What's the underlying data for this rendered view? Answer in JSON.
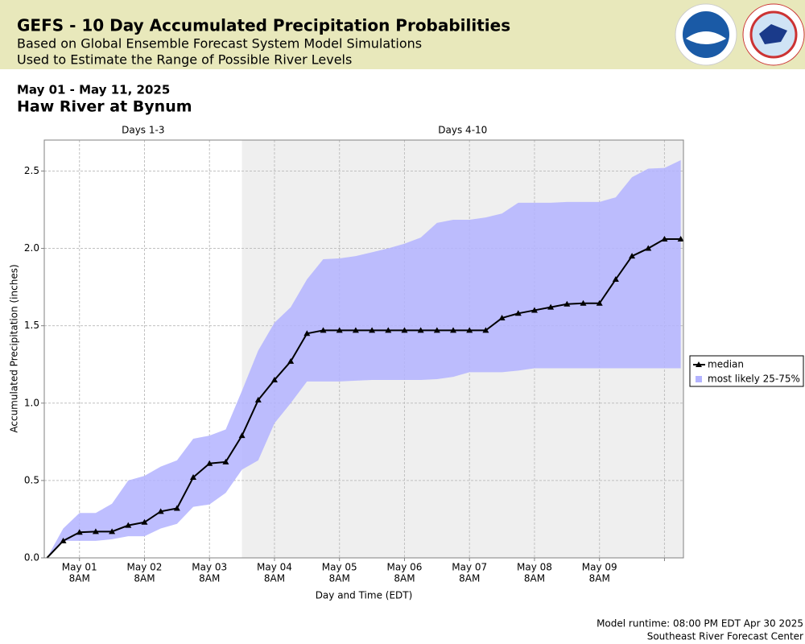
{
  "header": {
    "title": "GEFS - 10 Day Accumulated Precipitation Probabilities",
    "subtitle": "Based on Global Ensemble Forecast System Model Simulations",
    "subtitle2": "Used to Estimate the Range of Possible River Levels"
  },
  "chart_data": {
    "type": "line",
    "date_range": "May 01 - May 11, 2025",
    "title": "Haw River at Bynum",
    "x_label": "Day and Time (EDT)",
    "y_label": "Accumulated Precipitation (inches)",
    "regions": [
      {
        "label": "Days 1-3",
        "range": [
          -5,
          68
        ],
        "shaded": false
      },
      {
        "label": "Days 4-10",
        "range": [
          68,
          231
        ],
        "shaded": true
      }
    ],
    "x": [
      -4,
      2,
      8,
      14,
      20,
      26,
      32,
      38,
      44,
      50,
      56,
      62,
      68,
      74,
      80,
      86,
      92,
      98,
      104,
      110,
      116,
      122,
      128,
      134,
      140,
      146,
      152,
      158,
      164,
      170,
      176,
      182,
      188,
      194,
      200,
      206,
      212,
      218,
      224,
      230
    ],
    "xlim": [
      -5,
      231
    ],
    "xticks": [
      {
        "value": 8,
        "label": "May 01",
        "sublabel": "8AM"
      },
      {
        "value": 32,
        "label": "May 02",
        "sublabel": "8AM"
      },
      {
        "value": 56,
        "label": "May 03",
        "sublabel": "8AM"
      },
      {
        "value": 80,
        "label": "May 04",
        "sublabel": "8AM"
      },
      {
        "value": 104,
        "label": "May 05",
        "sublabel": "8AM"
      },
      {
        "value": 128,
        "label": "May 06",
        "sublabel": "8AM"
      },
      {
        "value": 152,
        "label": "May 07",
        "sublabel": "8AM"
      },
      {
        "value": 176,
        "label": "May 08",
        "sublabel": "8AM"
      },
      {
        "value": 200,
        "label": "May 09",
        "sublabel": "8AM"
      },
      {
        "value": 224,
        "label": null,
        "sublabel": null
      }
    ],
    "ylim": [
      0,
      2.7
    ],
    "yticks": [
      {
        "value": 0,
        "label": "0.0"
      },
      {
        "value": 0.5,
        "label": "0.5"
      },
      {
        "value": 1,
        "label": "1.0"
      },
      {
        "value": 1.5,
        "label": "1.5"
      },
      {
        "value": 2,
        "label": "2.0"
      },
      {
        "value": 2.5,
        "label": "2.5"
      }
    ],
    "grid": true,
    "legend": "right",
    "series": [
      {
        "name": "median",
        "color": "#000000",
        "marker": "triangle",
        "values": [
          0,
          0.11,
          0.165,
          0.17,
          0.17,
          0.21,
          0.23,
          0.3,
          0.32,
          0.52,
          0.61,
          0.62,
          0.79,
          1.02,
          1.15,
          1.27,
          1.45,
          1.47,
          1.47,
          1.47,
          1.47,
          1.47,
          1.47,
          1.47,
          1.47,
          1.47,
          1.47,
          1.47,
          1.55,
          1.58,
          1.6,
          1.62,
          1.64,
          1.645,
          1.645,
          1.8,
          1.95,
          2.0,
          2.06,
          2.06
        ]
      },
      {
        "name": "most likely 25-75%",
        "color": "#b3b3ff",
        "lower": [
          0,
          0.11,
          0.11,
          0.11,
          0.12,
          0.14,
          0.14,
          0.19,
          0.22,
          0.33,
          0.345,
          0.42,
          0.57,
          0.63,
          0.87,
          1.0,
          1.14,
          1.14,
          1.14,
          1.145,
          1.15,
          1.15,
          1.15,
          1.15,
          1.155,
          1.17,
          1.2,
          1.2,
          1.2,
          1.21,
          1.225,
          1.225,
          1.225,
          1.225,
          1.225,
          1.225,
          1.225,
          1.225,
          1.225,
          1.225
        ],
        "upper": [
          0,
          0.19,
          0.29,
          0.29,
          0.35,
          0.5,
          0.53,
          0.59,
          0.63,
          0.77,
          0.79,
          0.83,
          1.08,
          1.34,
          1.52,
          1.62,
          1.8,
          1.93,
          1.935,
          1.95,
          1.975,
          2.0,
          2.03,
          2.07,
          2.165,
          2.185,
          2.185,
          2.2,
          2.225,
          2.295,
          2.295,
          2.295,
          2.3,
          2.3,
          2.3,
          2.33,
          2.46,
          2.515,
          2.52,
          2.57
        ]
      }
    ]
  },
  "footer": {
    "runtime": "Model runtime: 08:00 PM EDT Apr 30 2025",
    "center": "Southeast River Forecast Center"
  }
}
